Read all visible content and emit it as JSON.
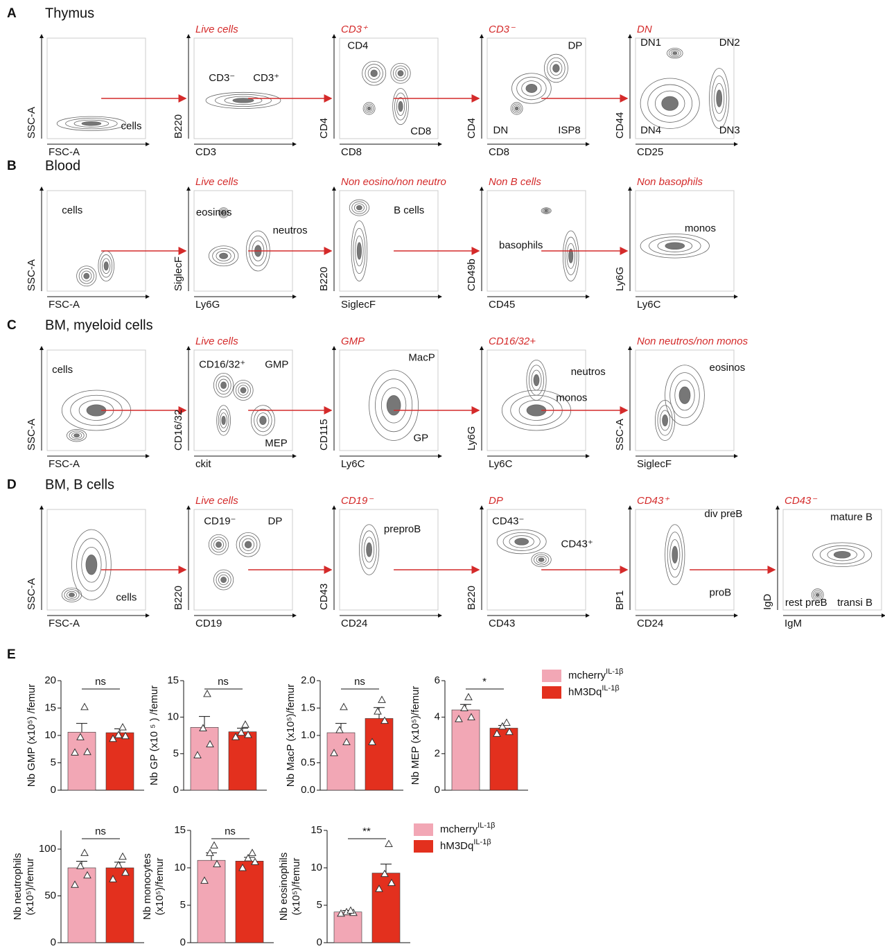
{
  "figure": {
    "rows": [
      {
        "letter": "A",
        "name": "Thymus",
        "plots": [
          {
            "x": "FSC-A",
            "y": "SSC-A",
            "gates": [
              "cells"
            ]
          },
          {
            "title": "Live cells",
            "x": "CD3",
            "y": "B220",
            "gates": [
              "CD3⁻",
              "CD3⁺"
            ]
          },
          {
            "title": "CD3⁺",
            "x": "CD8",
            "y": "CD4",
            "gates": [
              "CD4",
              "CD8"
            ]
          },
          {
            "title": "CD3⁻",
            "x": "CD8",
            "y": "CD4",
            "gates": [
              "DP",
              "DN",
              "ISP8"
            ]
          },
          {
            "title": "DN",
            "x": "CD25",
            "y": "CD44",
            "gates": [
              "DN1",
              "DN2",
              "DN4",
              "DN3"
            ]
          }
        ]
      },
      {
        "letter": "B",
        "name": "Blood",
        "plots": [
          {
            "x": "FSC-A",
            "y": "SSC-A",
            "gates": [
              "cells"
            ]
          },
          {
            "title": "Live cells",
            "x": "Ly6G",
            "y": "SiglecF",
            "gates": [
              "eosinos",
              "neutros"
            ]
          },
          {
            "title": "Non eosino/non neutro",
            "x": "SiglecF",
            "y": "B220",
            "gates": [
              "B cells"
            ]
          },
          {
            "title": "Non B cells",
            "x": "CD45",
            "y": "CD49b",
            "gates": [
              "basophils"
            ]
          },
          {
            "title": "Non basophils",
            "x": "Ly6C",
            "y": "Ly6G",
            "gates": [
              "monos"
            ]
          }
        ]
      },
      {
        "letter": "C",
        "name": "BM, myeloid cells",
        "plots": [
          {
            "x": "FSC-A",
            "y": "SSC-A",
            "gates": [
              "cells"
            ]
          },
          {
            "title": "Live cells",
            "x": "ckit",
            "y": "CD16/32",
            "gates": [
              "CD16/32⁺",
              "GMP",
              "MEP"
            ]
          },
          {
            "title": "GMP",
            "x": "Ly6C",
            "y": "CD115",
            "gates": [
              "MacP",
              "GP"
            ]
          },
          {
            "title": "CD16/32+",
            "x": "Ly6C",
            "y": "Ly6G",
            "gates": [
              "neutros",
              "monos"
            ]
          },
          {
            "title": "Non neutros/non monos",
            "x": "SiglecF",
            "y": "SSC-A",
            "gates": [
              "eosinos"
            ]
          }
        ]
      },
      {
        "letter": "D",
        "name": "BM, B cells",
        "plots": [
          {
            "x": "FSC-A",
            "y": "SSC-A",
            "gates": [
              "cells"
            ]
          },
          {
            "title": "Live cells",
            "x": "CD19",
            "y": "B220",
            "gates": [
              "CD19⁻",
              "DP"
            ]
          },
          {
            "title": "CD19⁻",
            "x": "CD24",
            "y": "CD43",
            "gates": [
              "preproB"
            ]
          },
          {
            "title": "DP",
            "x": "CD43",
            "y": "B220",
            "gates": [
              "CD43⁻",
              "CD43⁺"
            ]
          },
          {
            "title": "CD43⁺",
            "x": "CD24",
            "y": "BP1",
            "gates": [
              "div preB",
              "proB"
            ]
          },
          {
            "title": "CD43⁻",
            "x": "IgM",
            "y": "IgD",
            "gates": [
              "mature B",
              "rest preB",
              "transi B"
            ]
          }
        ]
      }
    ],
    "panel_e": "E"
  },
  "chart_data": [
    {
      "type": "bar",
      "ylabel": "Nb GMP (x10⁵) /femur",
      "ylim": [
        0,
        20
      ],
      "yticks": [
        0,
        5,
        10,
        15,
        20
      ],
      "significance": "ns",
      "series": [
        {
          "name": "mcherry",
          "name_sup": "IL-1β",
          "color": "#f2a7b5",
          "values": [
            10.6
          ],
          "error": [
            1.6
          ],
          "points": [
            6.9,
            7.0,
            9.7,
            15.2
          ]
        },
        {
          "name": "hM3Dq",
          "name_sup": "IL-1β",
          "color": "#e3301e",
          "values": [
            10.5
          ],
          "error": [
            0.7
          ],
          "points": [
            9.4,
            9.9,
            10.1,
            11.5
          ]
        }
      ]
    },
    {
      "type": "bar",
      "ylabel": "Nb GP (x10 ⁵ ) /femur",
      "ylim": [
        0,
        15
      ],
      "yticks": [
        0,
        5,
        10,
        15
      ],
      "significance": "ns",
      "series": [
        {
          "name": "mcherry",
          "name_sup": "IL-1β",
          "color": "#f2a7b5",
          "values": [
            8.6
          ],
          "error": [
            1.5
          ],
          "points": [
            4.8,
            6.3,
            8.5,
            13.2
          ]
        },
        {
          "name": "hM3Dq",
          "name_sup": "IL-1β",
          "color": "#e3301e",
          "values": [
            8.0
          ],
          "error": [
            0.5
          ],
          "points": [
            7.3,
            7.6,
            7.9,
            9.0
          ]
        }
      ]
    },
    {
      "type": "bar",
      "ylabel": "Nb MacP (x10⁵)/femur",
      "ylim": [
        0,
        2
      ],
      "yticks": [
        {
          "value": 0,
          "label": "0.0"
        },
        0.5,
        {
          "value": 1,
          "label": "1.0"
        },
        1.5,
        {
          "value": 2,
          "label": "2.0"
        }
      ],
      "significance": "ns",
      "series": [
        {
          "name": "mcherry",
          "name_sup": "IL-1β",
          "color": "#f2a7b5",
          "values": [
            1.05
          ],
          "error": [
            0.17
          ],
          "points": [
            0.68,
            0.88,
            1.1,
            1.52
          ]
        },
        {
          "name": "hM3Dq",
          "name_sup": "IL-1β",
          "color": "#e3301e",
          "values": [
            1.31
          ],
          "error": [
            0.2
          ],
          "points": [
            0.88,
            1.27,
            1.44,
            1.65
          ]
        }
      ]
    },
    {
      "type": "bar",
      "ylabel": "Nb MEP (x10⁵)/femur",
      "ylim": [
        0,
        6
      ],
      "yticks": [
        0,
        2,
        4,
        6
      ],
      "significance": "*",
      "series": [
        {
          "name": "mcherry",
          "name_sup": "IL-1β",
          "color": "#f2a7b5",
          "values": [
            4.4
          ],
          "error": [
            0.3
          ],
          "points": [
            3.9,
            4.0,
            4.5,
            5.1
          ]
        },
        {
          "name": "hM3Dq",
          "name_sup": "IL-1β",
          "color": "#e3301e",
          "values": [
            3.4
          ],
          "error": [
            0.15
          ],
          "points": [
            3.1,
            3.2,
            3.5,
            3.7
          ]
        }
      ]
    },
    {
      "type": "bar",
      "ylabel": [
        "Nb neutrophils",
        "(x10⁵)/femur"
      ],
      "ylim": [
        0,
        120
      ],
      "yticks": [
        0,
        50,
        100
      ],
      "significance": "ns",
      "series": [
        {
          "name": "mcherry",
          "name_sup": "IL-1β",
          "color": "#f2a7b5",
          "values": [
            80
          ],
          "error": [
            7
          ],
          "points": [
            62,
            72,
            82,
            96
          ]
        },
        {
          "name": "hM3Dq",
          "name_sup": "IL-1β",
          "color": "#e3301e",
          "values": [
            80
          ],
          "error": [
            6
          ],
          "points": [
            68,
            75,
            83,
            92
          ]
        }
      ]
    },
    {
      "type": "bar",
      "ylabel": [
        "Nb monocytes",
        "(x10⁵)/femur"
      ],
      "ylim": [
        0,
        15
      ],
      "yticks": [
        0,
        5,
        10,
        15
      ],
      "significance": "ns",
      "series": [
        {
          "name": "mcherry",
          "name_sup": "IL-1β",
          "color": "#f2a7b5",
          "values": [
            11.0
          ],
          "error": [
            1.0
          ],
          "points": [
            8.3,
            10.5,
            12.0,
            13.0
          ]
        },
        {
          "name": "hM3Dq",
          "name_sup": "IL-1β",
          "color": "#e3301e",
          "values": [
            10.9
          ],
          "error": [
            0.5
          ],
          "points": [
            10.0,
            10.8,
            11.3,
            12.0
          ]
        }
      ]
    },
    {
      "type": "bar",
      "ylabel": [
        "Nb eosinophils",
        "(x10⁵)/femur"
      ],
      "ylim": [
        0,
        15
      ],
      "yticks": [
        0,
        5,
        10,
        15
      ],
      "significance": "**",
      "series": [
        {
          "name": "mcherry",
          "name_sup": "IL-1β",
          "color": "#f2a7b5",
          "values": [
            4.1
          ],
          "error": [
            0.2
          ],
          "points": [
            3.9,
            4.0,
            4.1,
            4.3
          ]
        },
        {
          "name": "hM3Dq",
          "name_sup": "IL-1β",
          "color": "#e3301e",
          "values": [
            9.3
          ],
          "error": [
            1.2
          ],
          "points": [
            7.2,
            8.0,
            9.2,
            13.2
          ]
        }
      ]
    }
  ]
}
